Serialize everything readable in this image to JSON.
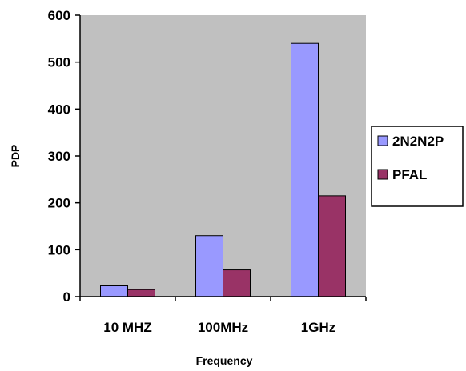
{
  "chart_data": {
    "type": "bar",
    "categories": [
      "10 MHZ",
      "100MHz",
      "1GHz"
    ],
    "series": [
      {
        "name": "2N2N2P",
        "values": [
          23,
          130,
          540
        ],
        "color": "#9999ff"
      },
      {
        "name": "PFAL",
        "values": [
          15,
          57,
          215
        ],
        "color": "#993366"
      }
    ],
    "xlabel": "Frequency",
    "ylabel": "PDP",
    "ylim": [
      0,
      600
    ],
    "yticks": [
      0,
      100,
      200,
      300,
      400,
      500,
      600
    ],
    "plot_background": "#c0c0c0",
    "grid": false,
    "legend": "right"
  }
}
